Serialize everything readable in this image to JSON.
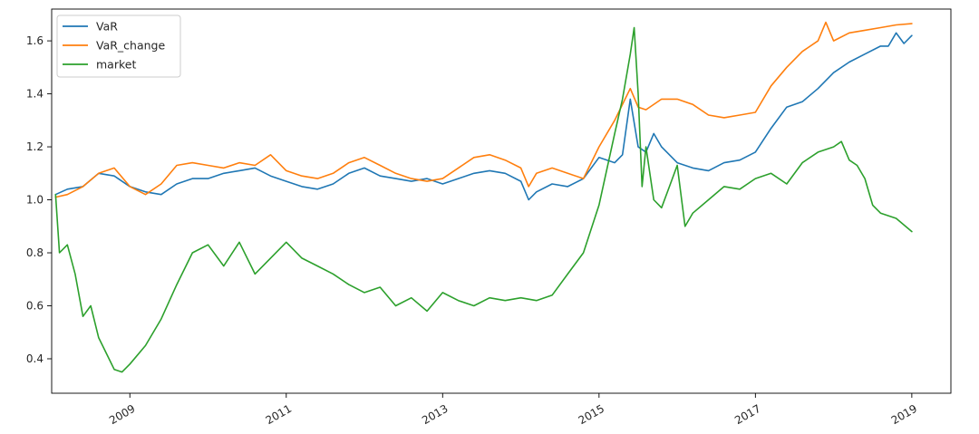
{
  "chart_data": {
    "type": "line",
    "title": "",
    "xlabel": "",
    "ylabel": "",
    "xlim": [
      2008.0,
      2019.5
    ],
    "ylim": [
      0.27,
      1.72
    ],
    "x_ticks": [
      2009,
      2011,
      2013,
      2015,
      2017,
      2019
    ],
    "x_tick_labels": [
      "2009",
      "2011",
      "2013",
      "2015",
      "2017",
      "2019"
    ],
    "y_ticks": [
      0.4,
      0.6,
      0.8,
      1.0,
      1.2,
      1.4,
      1.6
    ],
    "y_tick_labels": [
      "0.4",
      "0.6",
      "0.8",
      "1.0",
      "1.2",
      "1.4",
      "1.6"
    ],
    "grid": false,
    "legend_position": "top-left",
    "series": [
      {
        "name": "VaR",
        "color": "#1f77b4",
        "x": [
          2008.05,
          2008.2,
          2008.4,
          2008.6,
          2008.8,
          2009.0,
          2009.2,
          2009.4,
          2009.6,
          2009.8,
          2010.0,
          2010.2,
          2010.4,
          2010.6,
          2010.8,
          2011.0,
          2011.2,
          2011.4,
          2011.6,
          2011.8,
          2012.0,
          2012.2,
          2012.4,
          2012.6,
          2012.8,
          2013.0,
          2013.2,
          2013.4,
          2013.6,
          2013.8,
          2014.0,
          2014.1,
          2014.2,
          2014.4,
          2014.6,
          2014.8,
          2015.0,
          2015.2,
          2015.3,
          2015.4,
          2015.5,
          2015.6,
          2015.7,
          2015.8,
          2016.0,
          2016.2,
          2016.4,
          2016.6,
          2016.8,
          2017.0,
          2017.2,
          2017.4,
          2017.6,
          2017.8,
          2018.0,
          2018.2,
          2018.4,
          2018.6,
          2018.7,
          2018.8,
          2018.9,
          2019.0
        ],
        "y": [
          1.02,
          1.04,
          1.05,
          1.1,
          1.09,
          1.05,
          1.03,
          1.02,
          1.06,
          1.08,
          1.08,
          1.1,
          1.11,
          1.12,
          1.09,
          1.07,
          1.05,
          1.04,
          1.06,
          1.1,
          1.12,
          1.09,
          1.08,
          1.07,
          1.08,
          1.06,
          1.08,
          1.1,
          1.11,
          1.1,
          1.07,
          1.0,
          1.03,
          1.06,
          1.05,
          1.08,
          1.16,
          1.14,
          1.17,
          1.38,
          1.2,
          1.18,
          1.25,
          1.2,
          1.14,
          1.12,
          1.11,
          1.14,
          1.15,
          1.18,
          1.27,
          1.35,
          1.37,
          1.42,
          1.48,
          1.52,
          1.55,
          1.58,
          1.58,
          1.63,
          1.59,
          1.62
        ]
      },
      {
        "name": "VaR_change",
        "color": "#ff7f0e",
        "x": [
          2008.05,
          2008.2,
          2008.4,
          2008.6,
          2008.8,
          2009.0,
          2009.2,
          2009.4,
          2009.6,
          2009.8,
          2010.0,
          2010.2,
          2010.4,
          2010.6,
          2010.8,
          2011.0,
          2011.2,
          2011.4,
          2011.6,
          2011.8,
          2012.0,
          2012.2,
          2012.4,
          2012.6,
          2012.8,
          2013.0,
          2013.2,
          2013.4,
          2013.6,
          2013.8,
          2014.0,
          2014.1,
          2014.2,
          2014.4,
          2014.6,
          2014.8,
          2015.0,
          2015.2,
          2015.4,
          2015.5,
          2015.6,
          2015.8,
          2016.0,
          2016.2,
          2016.4,
          2016.6,
          2016.8,
          2017.0,
          2017.2,
          2017.4,
          2017.6,
          2017.8,
          2017.9,
          2018.0,
          2018.2,
          2018.4,
          2018.6,
          2018.8,
          2019.0
        ],
        "y": [
          1.01,
          1.02,
          1.05,
          1.1,
          1.12,
          1.05,
          1.02,
          1.06,
          1.13,
          1.14,
          1.13,
          1.12,
          1.14,
          1.13,
          1.17,
          1.11,
          1.09,
          1.08,
          1.1,
          1.14,
          1.16,
          1.13,
          1.1,
          1.08,
          1.07,
          1.08,
          1.12,
          1.16,
          1.17,
          1.15,
          1.12,
          1.05,
          1.1,
          1.12,
          1.1,
          1.08,
          1.2,
          1.3,
          1.42,
          1.35,
          1.34,
          1.38,
          1.38,
          1.36,
          1.32,
          1.31,
          1.32,
          1.33,
          1.43,
          1.5,
          1.56,
          1.6,
          1.67,
          1.6,
          1.63,
          1.64,
          1.65,
          1.66,
          1.665
        ]
      },
      {
        "name": "market",
        "color": "#2ca02c",
        "x": [
          2008.05,
          2008.1,
          2008.2,
          2008.3,
          2008.4,
          2008.5,
          2008.6,
          2008.7,
          2008.8,
          2008.9,
          2009.0,
          2009.2,
          2009.4,
          2009.6,
          2009.8,
          2010.0,
          2010.2,
          2010.4,
          2010.6,
          2010.8,
          2011.0,
          2011.2,
          2011.4,
          2011.6,
          2011.8,
          2012.0,
          2012.2,
          2012.4,
          2012.6,
          2012.8,
          2013.0,
          2013.2,
          2013.4,
          2013.6,
          2013.8,
          2014.0,
          2014.2,
          2014.4,
          2014.6,
          2014.8,
          2015.0,
          2015.2,
          2015.3,
          2015.4,
          2015.45,
          2015.5,
          2015.55,
          2015.6,
          2015.7,
          2015.8,
          2015.9,
          2016.0,
          2016.1,
          2016.2,
          2016.4,
          2016.6,
          2016.8,
          2017.0,
          2017.2,
          2017.4,
          2017.6,
          2017.8,
          2018.0,
          2018.1,
          2018.2,
          2018.3,
          2018.4,
          2018.5,
          2018.6,
          2018.8,
          2019.0
        ],
        "y": [
          1.02,
          0.8,
          0.83,
          0.72,
          0.56,
          0.6,
          0.48,
          0.42,
          0.36,
          0.35,
          0.38,
          0.45,
          0.55,
          0.68,
          0.8,
          0.83,
          0.75,
          0.84,
          0.72,
          0.78,
          0.84,
          0.78,
          0.75,
          0.72,
          0.68,
          0.65,
          0.67,
          0.6,
          0.63,
          0.58,
          0.65,
          0.62,
          0.6,
          0.63,
          0.62,
          0.63,
          0.62,
          0.64,
          0.72,
          0.8,
          0.98,
          1.25,
          1.38,
          1.55,
          1.65,
          1.4,
          1.05,
          1.2,
          1.0,
          0.97,
          1.05,
          1.13,
          0.9,
          0.95,
          1.0,
          1.05,
          1.04,
          1.08,
          1.1,
          1.06,
          1.14,
          1.18,
          1.2,
          1.22,
          1.15,
          1.13,
          1.08,
          0.98,
          0.95,
          0.93,
          0.88
        ]
      }
    ]
  }
}
